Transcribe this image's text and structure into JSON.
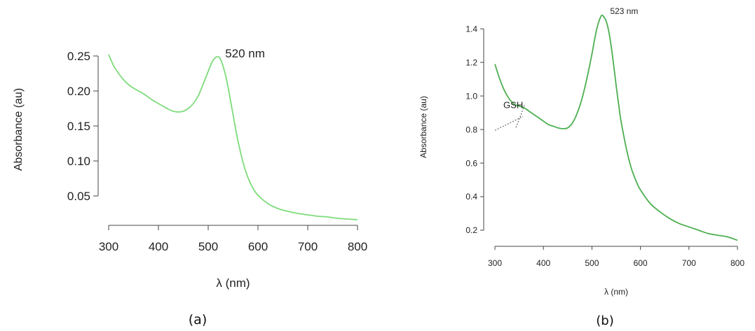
{
  "chart_data": [
    {
      "type": "line",
      "panel_label": "(a)",
      "xlabel": "λ (nm)",
      "ylabel": "Absorbance (au)",
      "xlim": [
        300,
        800
      ],
      "ylim": [
        0.02,
        0.27
      ],
      "xticks": [
        300,
        400,
        500,
        600,
        700,
        800
      ],
      "yticks": [
        0.05,
        0.1,
        0.15,
        0.2,
        0.25
      ],
      "ytick_labels": [
        "0.05",
        "0.10",
        "0.15",
        "0.20",
        "0.25"
      ],
      "line_color": "#7ddc7a",
      "annotations": [
        {
          "text": "520 nm",
          "x": 520,
          "y": 0.25
        }
      ],
      "series": [
        {
          "x": [
            300,
            310,
            320,
            330,
            340,
            350,
            360,
            370,
            380,
            390,
            400,
            410,
            420,
            430,
            440,
            450,
            460,
            470,
            480,
            490,
            500,
            505,
            510,
            515,
            520,
            525,
            530,
            535,
            540,
            545,
            550,
            555,
            560,
            570,
            580,
            590,
            600,
            620,
            640,
            660,
            680,
            700,
            720,
            740,
            760,
            780,
            800
          ],
          "y": [
            0.252,
            0.236,
            0.225,
            0.216,
            0.209,
            0.204,
            0.2,
            0.196,
            0.191,
            0.186,
            0.182,
            0.178,
            0.174,
            0.171,
            0.17,
            0.171,
            0.175,
            0.182,
            0.193,
            0.21,
            0.228,
            0.237,
            0.244,
            0.248,
            0.249,
            0.245,
            0.235,
            0.222,
            0.205,
            0.186,
            0.166,
            0.146,
            0.128,
            0.098,
            0.076,
            0.061,
            0.051,
            0.039,
            0.032,
            0.028,
            0.025,
            0.023,
            0.021,
            0.02,
            0.018,
            0.017,
            0.016
          ]
        }
      ]
    },
    {
      "type": "line",
      "panel_label": "(b)",
      "xlabel": "λ (nm)",
      "ylabel": "Absorbance (au)",
      "xlim": [
        300,
        800
      ],
      "ylim": [
        0.15,
        1.48
      ],
      "xticks": [
        300,
        400,
        500,
        600,
        700,
        800
      ],
      "yticks": [
        0.2,
        0.4,
        0.6,
        0.8,
        1.0,
        1.2,
        1.4
      ],
      "ytick_labels": [
        "0.2",
        "0.4",
        "0.6",
        "0.8",
        "1.0",
        "1.2",
        "1.4"
      ],
      "line_color": "#4caf50",
      "annotations": [
        {
          "text": "523 nm",
          "x": 523,
          "y": 1.48
        },
        {
          "text": "GSH",
          "x": 355,
          "y": 0.92
        }
      ],
      "series": [
        {
          "x": [
            300,
            310,
            320,
            330,
            340,
            350,
            360,
            370,
            380,
            390,
            400,
            410,
            420,
            430,
            440,
            450,
            460,
            470,
            480,
            490,
            500,
            505,
            510,
            515,
            520,
            525,
            530,
            535,
            540,
            545,
            550,
            555,
            560,
            570,
            580,
            590,
            600,
            620,
            640,
            660,
            680,
            700,
            720,
            740,
            760,
            780,
            800
          ],
          "y": [
            1.19,
            1.1,
            1.03,
            0.98,
            0.95,
            0.94,
            0.93,
            0.91,
            0.89,
            0.87,
            0.85,
            0.83,
            0.82,
            0.81,
            0.805,
            0.81,
            0.84,
            0.9,
            0.99,
            1.11,
            1.25,
            1.33,
            1.4,
            1.45,
            1.48,
            1.47,
            1.44,
            1.38,
            1.29,
            1.18,
            1.06,
            0.95,
            0.85,
            0.7,
            0.58,
            0.5,
            0.44,
            0.36,
            0.31,
            0.27,
            0.24,
            0.22,
            0.2,
            0.18,
            0.17,
            0.16,
            0.14
          ]
        }
      ]
    }
  ]
}
